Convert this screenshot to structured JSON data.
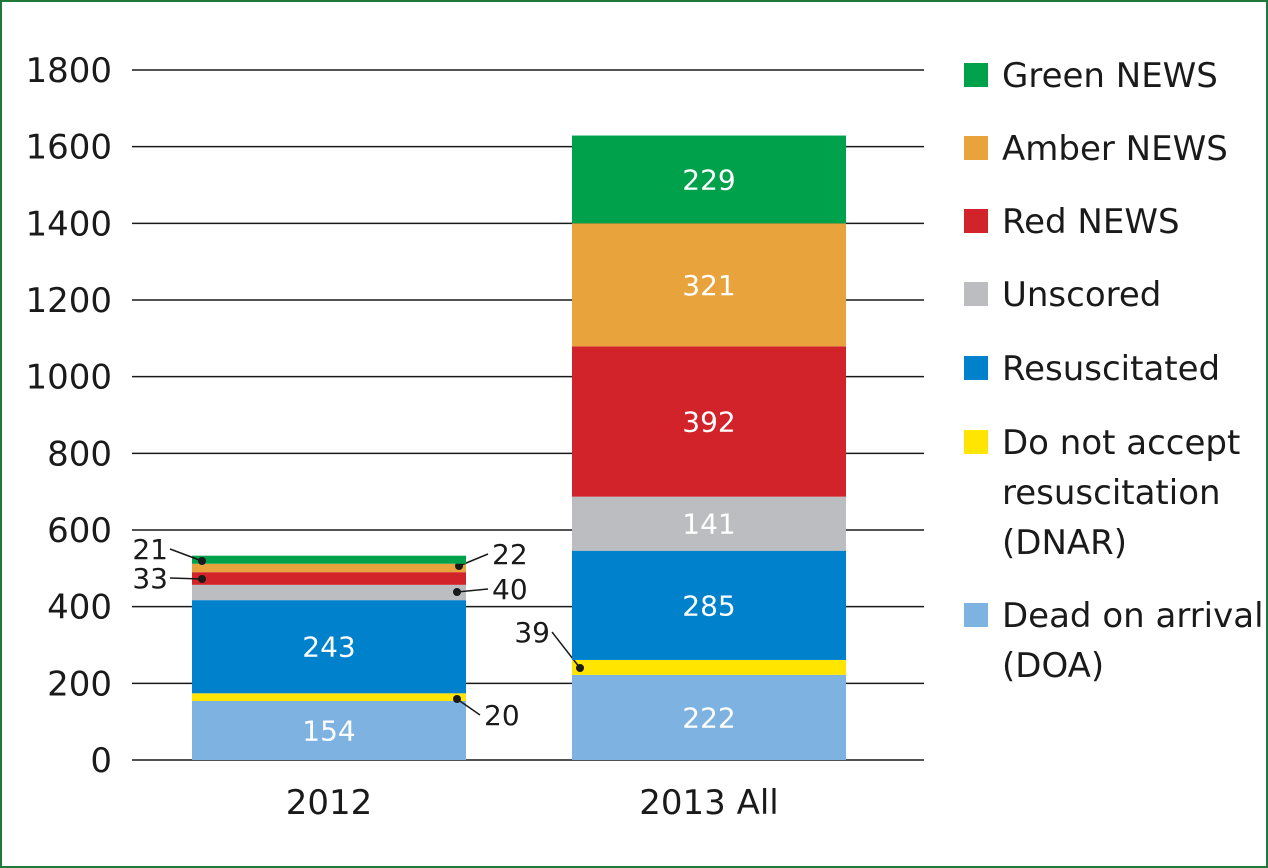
{
  "chart_data": {
    "type": "bar",
    "stacked": true,
    "title": "",
    "xlabel": "",
    "ylabel": "",
    "ylim": [
      0,
      1800
    ],
    "yticks": [
      0,
      200,
      400,
      600,
      800,
      1000,
      1200,
      1400,
      1600,
      1800
    ],
    "grid": true,
    "legend_position": "right",
    "categories": [
      "2012",
      "2013 All"
    ],
    "series": [
      {
        "name": "Dead on arrival (DOA)",
        "legend_lines": [
          "Dead on arrival",
          "(DOA)"
        ],
        "color": "#7eb2e0",
        "values": [
          154,
          222
        ]
      },
      {
        "name": "Do not accept resuscitation (DNAR)",
        "legend_lines": [
          "Do not accept",
          "resuscitation",
          "(DNAR)"
        ],
        "color": "#ffe500",
        "values": [
          20,
          39
        ]
      },
      {
        "name": "Resuscitated",
        "legend_lines": [
          "Resuscitated"
        ],
        "color": "#0081cc",
        "values": [
          243,
          285
        ]
      },
      {
        "name": "Unscored",
        "legend_lines": [
          "Unscored"
        ],
        "color": "#bcbdc0",
        "values": [
          40,
          141
        ]
      },
      {
        "name": "Red NEWS",
        "legend_lines": [
          "Red NEWS"
        ],
        "color": "#d2232a",
        "values": [
          33,
          392
        ]
      },
      {
        "name": "Amber NEWS",
        "legend_lines": [
          "Amber NEWS"
        ],
        "color": "#e8a33d",
        "values": [
          22,
          321
        ]
      },
      {
        "name": "Green NEWS",
        "legend_lines": [
          "Green NEWS"
        ],
        "color": "#00a14b",
        "values": [
          21,
          229
        ]
      }
    ]
  }
}
